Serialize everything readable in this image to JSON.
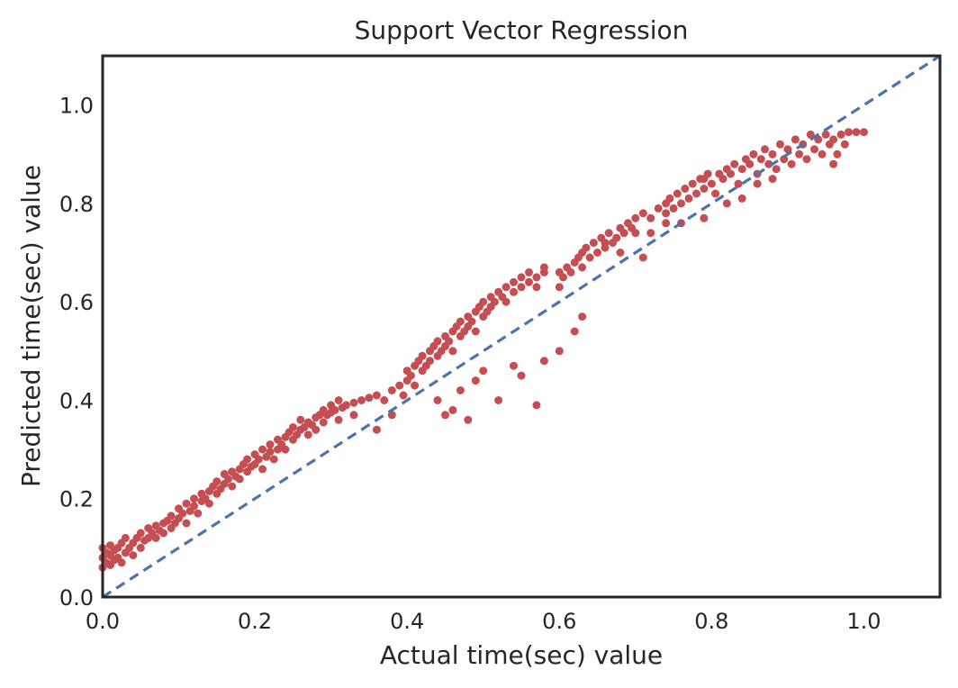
{
  "chart_data": {
    "type": "scatter",
    "title": "Support Vector Regression",
    "xlabel": "Actual time(sec) value",
    "ylabel": "Predicted time(sec) value",
    "xlim": [
      0.0,
      1.1
    ],
    "ylim": [
      0.0,
      1.1
    ],
    "xticks": [
      "0.0",
      "0.2",
      "0.4",
      "0.6",
      "0.8",
      "1.0"
    ],
    "yticks": [
      "0.0",
      "0.2",
      "0.4",
      "0.6",
      "0.8",
      "1.0"
    ],
    "grid": false,
    "colors": {
      "points": "#c44e52",
      "reference_line": "#4c72b0",
      "frame": "#262626"
    },
    "reference_line": {
      "style": "dashed",
      "x": [
        0.0,
        1.1
      ],
      "y": [
        0.0,
        1.1
      ]
    },
    "points": [
      [
        0.0,
        0.06
      ],
      [
        0.0,
        0.08
      ],
      [
        0.0,
        0.1
      ],
      [
        0.005,
        0.07
      ],
      [
        0.005,
        0.09
      ],
      [
        0.01,
        0.065
      ],
      [
        0.01,
        0.085
      ],
      [
        0.01,
        0.105
      ],
      [
        0.015,
        0.075
      ],
      [
        0.015,
        0.095
      ],
      [
        0.02,
        0.08
      ],
      [
        0.02,
        0.1
      ],
      [
        0.025,
        0.07
      ],
      [
        0.025,
        0.11
      ],
      [
        0.03,
        0.09
      ],
      [
        0.03,
        0.12
      ],
      [
        0.035,
        0.1
      ],
      [
        0.04,
        0.085
      ],
      [
        0.04,
        0.11
      ],
      [
        0.045,
        0.12
      ],
      [
        0.05,
        0.1
      ],
      [
        0.05,
        0.13
      ],
      [
        0.055,
        0.115
      ],
      [
        0.06,
        0.12
      ],
      [
        0.06,
        0.14
      ],
      [
        0.065,
        0.13
      ],
      [
        0.07,
        0.12
      ],
      [
        0.07,
        0.145
      ],
      [
        0.075,
        0.135
      ],
      [
        0.08,
        0.15
      ],
      [
        0.08,
        0.13
      ],
      [
        0.085,
        0.155
      ],
      [
        0.09,
        0.14
      ],
      [
        0.09,
        0.165
      ],
      [
        0.095,
        0.15
      ],
      [
        0.1,
        0.16
      ],
      [
        0.1,
        0.18
      ],
      [
        0.105,
        0.17
      ],
      [
        0.11,
        0.15
      ],
      [
        0.11,
        0.19
      ],
      [
        0.115,
        0.175
      ],
      [
        0.12,
        0.185
      ],
      [
        0.12,
        0.2
      ],
      [
        0.125,
        0.17
      ],
      [
        0.13,
        0.195
      ],
      [
        0.13,
        0.21
      ],
      [
        0.135,
        0.2
      ],
      [
        0.14,
        0.215
      ],
      [
        0.14,
        0.19
      ],
      [
        0.145,
        0.225
      ],
      [
        0.15,
        0.21
      ],
      [
        0.15,
        0.235
      ],
      [
        0.155,
        0.22
      ],
      [
        0.16,
        0.23
      ],
      [
        0.16,
        0.25
      ],
      [
        0.165,
        0.24
      ],
      [
        0.17,
        0.225
      ],
      [
        0.17,
        0.255
      ],
      [
        0.175,
        0.245
      ],
      [
        0.18,
        0.26
      ],
      [
        0.18,
        0.24
      ],
      [
        0.185,
        0.27
      ],
      [
        0.19,
        0.255
      ],
      [
        0.19,
        0.28
      ],
      [
        0.195,
        0.265
      ],
      [
        0.2,
        0.27
      ],
      [
        0.2,
        0.29
      ],
      [
        0.205,
        0.28
      ],
      [
        0.21,
        0.26
      ],
      [
        0.21,
        0.3
      ],
      [
        0.215,
        0.285
      ],
      [
        0.22,
        0.295
      ],
      [
        0.22,
        0.31
      ],
      [
        0.225,
        0.28
      ],
      [
        0.23,
        0.3
      ],
      [
        0.23,
        0.32
      ],
      [
        0.235,
        0.31
      ],
      [
        0.24,
        0.325
      ],
      [
        0.24,
        0.3
      ],
      [
        0.245,
        0.335
      ],
      [
        0.25,
        0.32
      ],
      [
        0.25,
        0.345
      ],
      [
        0.255,
        0.33
      ],
      [
        0.26,
        0.34
      ],
      [
        0.26,
        0.36
      ],
      [
        0.265,
        0.345
      ],
      [
        0.27,
        0.33
      ],
      [
        0.27,
        0.355
      ],
      [
        0.275,
        0.35
      ],
      [
        0.28,
        0.365
      ],
      [
        0.28,
        0.34
      ],
      [
        0.285,
        0.37
      ],
      [
        0.29,
        0.355
      ],
      [
        0.29,
        0.38
      ],
      [
        0.295,
        0.37
      ],
      [
        0.3,
        0.375
      ],
      [
        0.3,
        0.39
      ],
      [
        0.305,
        0.38
      ],
      [
        0.31,
        0.36
      ],
      [
        0.31,
        0.4
      ],
      [
        0.315,
        0.385
      ],
      [
        0.32,
        0.39
      ],
      [
        0.33,
        0.395
      ],
      [
        0.34,
        0.4
      ],
      [
        0.35,
        0.405
      ],
      [
        0.36,
        0.41
      ],
      [
        0.37,
        0.4
      ],
      [
        0.38,
        0.42
      ],
      [
        0.39,
        0.43
      ],
      [
        0.395,
        0.41
      ],
      [
        0.4,
        0.44
      ],
      [
        0.4,
        0.46
      ],
      [
        0.405,
        0.45
      ],
      [
        0.41,
        0.47
      ],
      [
        0.41,
        0.43
      ],
      [
        0.415,
        0.48
      ],
      [
        0.42,
        0.46
      ],
      [
        0.42,
        0.49
      ],
      [
        0.425,
        0.47
      ],
      [
        0.43,
        0.5
      ],
      [
        0.43,
        0.48
      ],
      [
        0.435,
        0.51
      ],
      [
        0.44,
        0.49
      ],
      [
        0.44,
        0.52
      ],
      [
        0.445,
        0.5
      ],
      [
        0.45,
        0.51
      ],
      [
        0.45,
        0.53
      ],
      [
        0.455,
        0.52
      ],
      [
        0.46,
        0.54
      ],
      [
        0.46,
        0.5
      ],
      [
        0.465,
        0.55
      ],
      [
        0.47,
        0.53
      ],
      [
        0.47,
        0.56
      ],
      [
        0.475,
        0.54
      ],
      [
        0.48,
        0.55
      ],
      [
        0.48,
        0.57
      ],
      [
        0.485,
        0.56
      ],
      [
        0.49,
        0.58
      ],
      [
        0.49,
        0.54
      ],
      [
        0.495,
        0.59
      ],
      [
        0.5,
        0.57
      ],
      [
        0.5,
        0.6
      ],
      [
        0.505,
        0.58
      ],
      [
        0.51,
        0.59
      ],
      [
        0.51,
        0.61
      ],
      [
        0.515,
        0.6
      ],
      [
        0.52,
        0.62
      ],
      [
        0.525,
        0.61
      ],
      [
        0.53,
        0.6
      ],
      [
        0.53,
        0.63
      ],
      [
        0.54,
        0.62
      ],
      [
        0.54,
        0.64
      ],
      [
        0.55,
        0.63
      ],
      [
        0.55,
        0.65
      ],
      [
        0.56,
        0.64
      ],
      [
        0.56,
        0.66
      ],
      [
        0.57,
        0.65
      ],
      [
        0.57,
        0.63
      ],
      [
        0.58,
        0.66
      ],
      [
        0.58,
        0.67
      ],
      [
        0.6,
        0.63
      ],
      [
        0.6,
        0.66
      ],
      [
        0.605,
        0.65
      ],
      [
        0.61,
        0.67
      ],
      [
        0.615,
        0.66
      ],
      [
        0.62,
        0.68
      ],
      [
        0.625,
        0.69
      ],
      [
        0.63,
        0.67
      ],
      [
        0.63,
        0.7
      ],
      [
        0.635,
        0.71
      ],
      [
        0.64,
        0.69
      ],
      [
        0.645,
        0.72
      ],
      [
        0.65,
        0.7
      ],
      [
        0.655,
        0.73
      ],
      [
        0.66,
        0.71
      ],
      [
        0.665,
        0.74
      ],
      [
        0.67,
        0.72
      ],
      [
        0.675,
        0.73
      ],
      [
        0.68,
        0.75
      ],
      [
        0.685,
        0.74
      ],
      [
        0.69,
        0.76
      ],
      [
        0.695,
        0.75
      ],
      [
        0.7,
        0.77
      ],
      [
        0.7,
        0.74
      ],
      [
        0.71,
        0.78
      ],
      [
        0.72,
        0.77
      ],
      [
        0.73,
        0.79
      ],
      [
        0.74,
        0.8
      ],
      [
        0.74,
        0.78
      ],
      [
        0.745,
        0.81
      ],
      [
        0.75,
        0.79
      ],
      [
        0.755,
        0.82
      ],
      [
        0.76,
        0.8
      ],
      [
        0.765,
        0.83
      ],
      [
        0.77,
        0.81
      ],
      [
        0.775,
        0.84
      ],
      [
        0.78,
        0.82
      ],
      [
        0.785,
        0.85
      ],
      [
        0.79,
        0.83
      ],
      [
        0.795,
        0.86
      ],
      [
        0.8,
        0.84
      ],
      [
        0.805,
        0.82
      ],
      [
        0.81,
        0.86
      ],
      [
        0.815,
        0.85
      ],
      [
        0.82,
        0.87
      ],
      [
        0.825,
        0.86
      ],
      [
        0.83,
        0.88
      ],
      [
        0.835,
        0.84
      ],
      [
        0.84,
        0.87
      ],
      [
        0.845,
        0.89
      ],
      [
        0.85,
        0.88
      ],
      [
        0.855,
        0.9
      ],
      [
        0.86,
        0.86
      ],
      [
        0.865,
        0.89
      ],
      [
        0.87,
        0.91
      ],
      [
        0.875,
        0.88
      ],
      [
        0.88,
        0.9
      ],
      [
        0.885,
        0.87
      ],
      [
        0.89,
        0.92
      ],
      [
        0.895,
        0.89
      ],
      [
        0.9,
        0.91
      ],
      [
        0.905,
        0.88
      ],
      [
        0.91,
        0.93
      ],
      [
        0.915,
        0.9
      ],
      [
        0.92,
        0.92
      ],
      [
        0.925,
        0.89
      ],
      [
        0.93,
        0.94
      ],
      [
        0.935,
        0.91
      ],
      [
        0.94,
        0.93
      ],
      [
        0.945,
        0.9
      ],
      [
        0.95,
        0.94
      ],
      [
        0.955,
        0.92
      ],
      [
        0.96,
        0.93
      ],
      [
        0.965,
        0.9
      ],
      [
        0.97,
        0.94
      ],
      [
        0.975,
        0.92
      ],
      [
        0.98,
        0.945
      ],
      [
        0.99,
        0.945
      ],
      [
        1.0,
        0.945
      ],
      [
        0.96,
        0.88
      ],
      [
        0.44,
        0.4
      ],
      [
        0.45,
        0.37
      ],
      [
        0.46,
        0.38
      ],
      [
        0.47,
        0.42
      ],
      [
        0.48,
        0.36
      ],
      [
        0.49,
        0.44
      ],
      [
        0.5,
        0.46
      ],
      [
        0.52,
        0.4
      ],
      [
        0.54,
        0.47
      ],
      [
        0.55,
        0.45
      ],
      [
        0.58,
        0.48
      ],
      [
        0.57,
        0.39
      ],
      [
        0.6,
        0.5
      ],
      [
        0.63,
        0.57
      ],
      [
        0.62,
        0.54
      ],
      [
        0.66,
        0.72
      ],
      [
        0.68,
        0.7
      ],
      [
        0.71,
        0.69
      ],
      [
        0.72,
        0.74
      ],
      [
        0.76,
        0.76
      ],
      [
        0.79,
        0.77
      ],
      [
        0.82,
        0.8
      ],
      [
        0.84,
        0.81
      ],
      [
        0.86,
        0.84
      ],
      [
        0.88,
        0.85
      ],
      [
        0.74,
        0.76
      ],
      [
        0.79,
        0.85
      ],
      [
        0.36,
        0.34
      ],
      [
        0.38,
        0.37
      ],
      [
        0.33,
        0.37
      ]
    ]
  }
}
